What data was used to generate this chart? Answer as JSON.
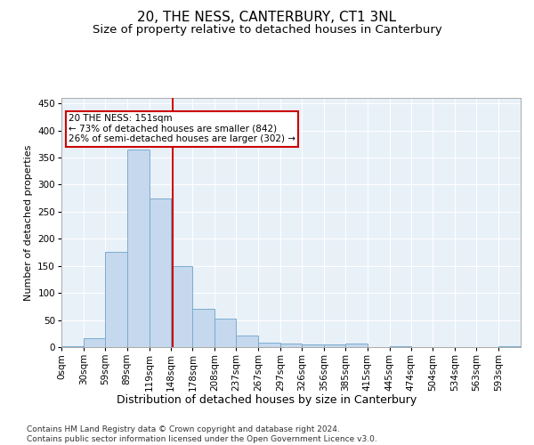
{
  "title": "20, THE NESS, CANTERBURY, CT1 3NL",
  "subtitle": "Size of property relative to detached houses in Canterbury",
  "xlabel": "Distribution of detached houses by size in Canterbury",
  "ylabel": "Number of detached properties",
  "bar_color": "#c5d8ed",
  "bar_edge_color": "#7aadcf",
  "bg_color": "#e8f0f8",
  "grid_color": "#ffffff",
  "vline_x": 151,
  "vline_color": "#cc0000",
  "annotation_text": "20 THE NESS: 151sqm\n← 73% of detached houses are smaller (842)\n26% of semi-detached houses are larger (302) →",
  "annotation_box_color": "#cc0000",
  "tick_labels": [
    "0sqm",
    "30sqm",
    "59sqm",
    "89sqm",
    "119sqm",
    "148sqm",
    "178sqm",
    "208sqm",
    "237sqm",
    "267sqm",
    "297sqm",
    "326sqm",
    "356sqm",
    "385sqm",
    "415sqm",
    "445sqm",
    "474sqm",
    "504sqm",
    "534sqm",
    "563sqm",
    "593sqm"
  ],
  "bin_edges": [
    0,
    30,
    59,
    89,
    119,
    148,
    178,
    208,
    237,
    267,
    297,
    326,
    356,
    385,
    415,
    445,
    474,
    504,
    534,
    563,
    593,
    623
  ],
  "bar_heights": [
    2,
    17,
    175,
    365,
    275,
    150,
    70,
    53,
    22,
    9,
    6,
    5,
    5,
    7,
    0,
    2,
    0,
    0,
    0,
    0,
    2
  ],
  "ylim": [
    0,
    460
  ],
  "yticks": [
    0,
    50,
    100,
    150,
    200,
    250,
    300,
    350,
    400,
    450
  ],
  "footer_text": "Contains HM Land Registry data © Crown copyright and database right 2024.\nContains public sector information licensed under the Open Government Licence v3.0.",
  "title_fontsize": 11,
  "subtitle_fontsize": 9.5,
  "xlabel_fontsize": 9,
  "ylabel_fontsize": 8,
  "tick_fontsize": 7.5,
  "footer_fontsize": 6.5
}
